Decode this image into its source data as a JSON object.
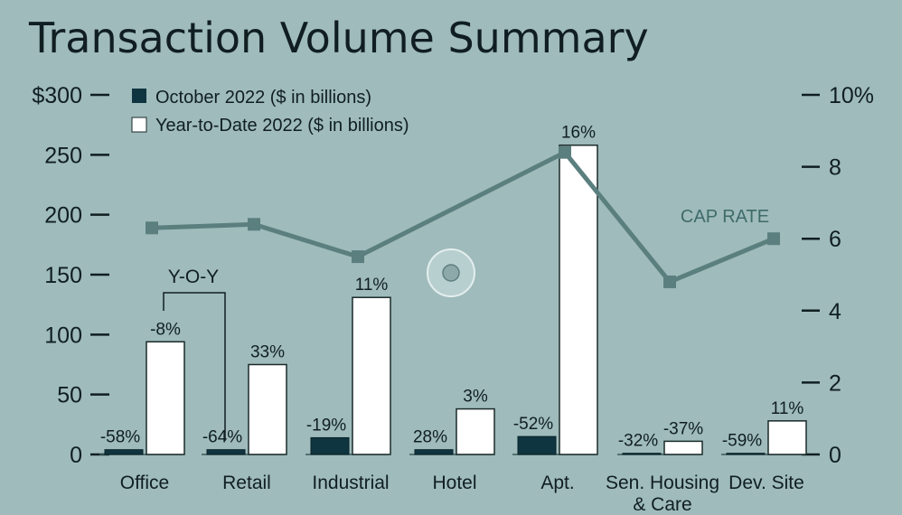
{
  "chart_data": {
    "type": "bar",
    "title": "Transaction Volume Summary",
    "categories": [
      "Office",
      "Retail",
      "Industrial",
      "Hotel",
      "Apt.",
      "Sen. Housing & Care",
      "Dev. Site"
    ],
    "series": [
      {
        "name": "October 2022 ($ in billions)",
        "values": [
          4,
          4,
          14,
          4,
          15,
          1,
          1
        ],
        "yoy_labels": [
          "-58%",
          "-64%",
          "-19%",
          "28%",
          "-52%",
          "-32%",
          "-59%"
        ],
        "color": "#0f3540"
      },
      {
        "name": "Year-to-Date 2022 ($ in billions)",
        "values": [
          94,
          75,
          131,
          38,
          258,
          11,
          28
        ],
        "yoy_labels": [
          "-8%",
          "33%",
          "11%",
          "3%",
          "16%",
          "-37%",
          "11%"
        ],
        "color": "#ffffff"
      }
    ],
    "line": {
      "name": "CAP RATE",
      "axis": "right",
      "values": [
        6.3,
        6.4,
        5.5,
        null,
        8.4,
        4.8,
        6.0
      ],
      "color": "#5b7f7f"
    },
    "y_left": {
      "ticks": [
        "$300",
        "250",
        "200",
        "150",
        "100",
        "50",
        "0"
      ],
      "range": [
        0,
        300
      ]
    },
    "y_right": {
      "ticks": [
        "10%",
        "8",
        "6",
        "4",
        "2",
        "0"
      ],
      "range": [
        0,
        10
      ]
    },
    "annotation": "Y-O-Y",
    "legend_position": "top-left"
  }
}
